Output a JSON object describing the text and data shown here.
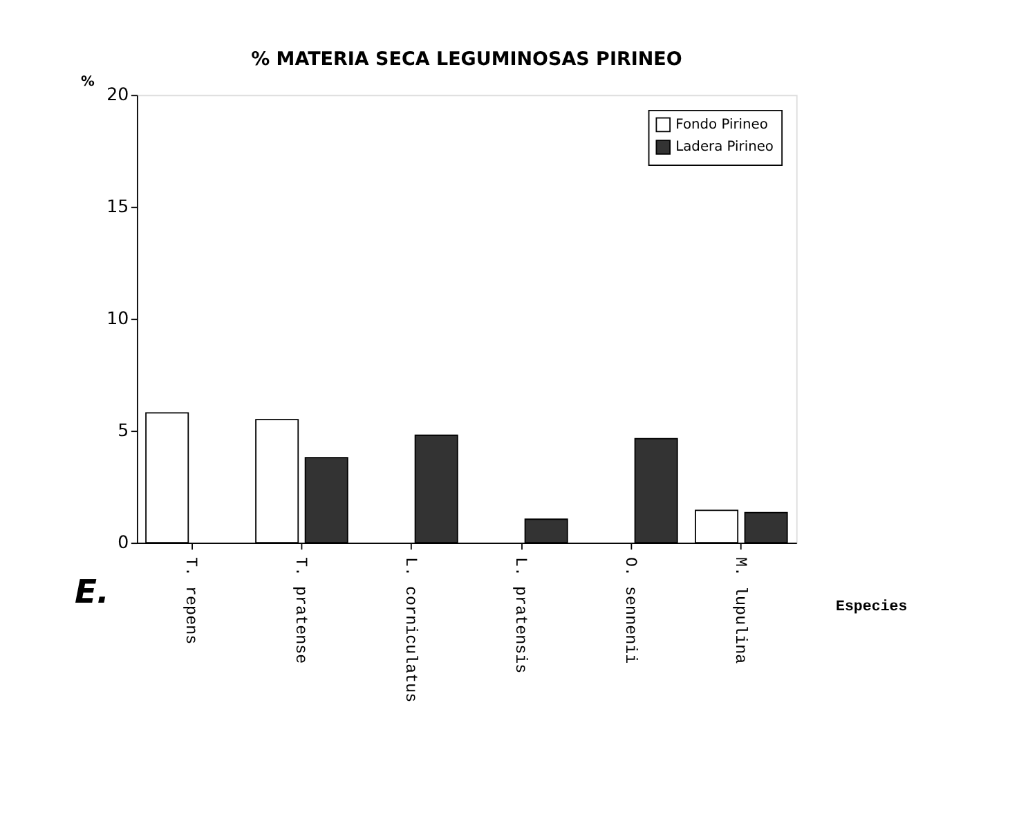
{
  "chart_data": {
    "type": "bar",
    "title": "% MATERIA SECA    LEGUMINOSAS  PIRINEO",
    "xlabel": "Especies",
    "ylabel": "%",
    "categories": [
      "T. repens",
      "T. pratense",
      "L. corniculatus",
      "L. pratensis",
      "O. sennenii",
      "M. lupulina"
    ],
    "series": [
      {
        "name": "Fondo Pirineo",
        "color": "#ffffff",
        "values": [
          5.8,
          5.5,
          null,
          null,
          null,
          1.45
        ]
      },
      {
        "name": "Ladera Pirineo",
        "color": "#333333",
        "values": [
          null,
          3.8,
          4.8,
          1.05,
          4.65,
          1.35
        ]
      }
    ],
    "ylim": [
      0,
      20
    ],
    "yticks": [
      0,
      5,
      10,
      15,
      20
    ],
    "grid": false,
    "legend": "top right",
    "annotations": [
      "E."
    ]
  }
}
